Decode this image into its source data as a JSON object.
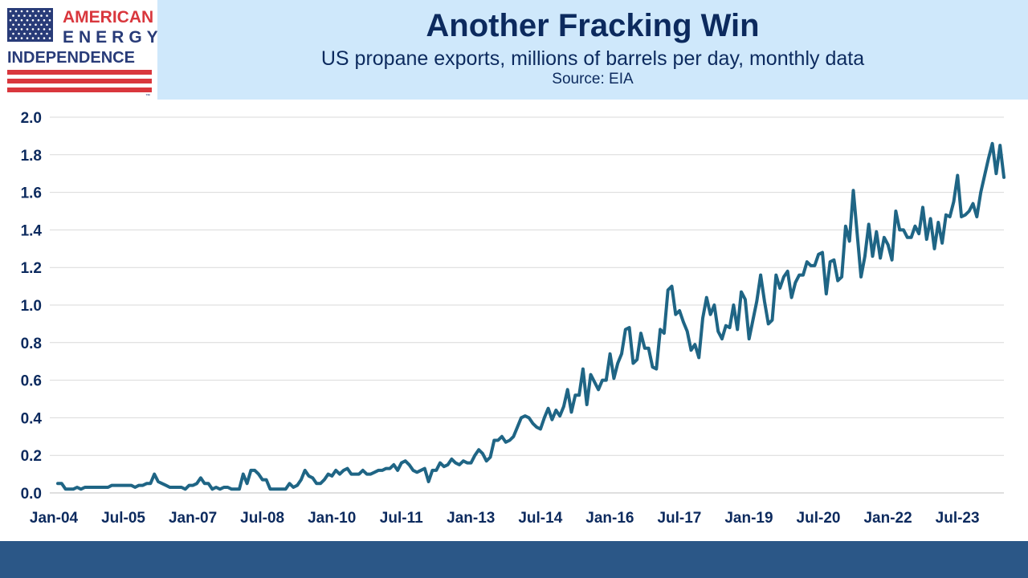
{
  "logo": {
    "line1": "AMERICAN",
    "line2": "ENERGY",
    "line3": "INDEPENDENCE",
    "tm": "™"
  },
  "header": {
    "title": "Another Fracking Win",
    "subtitle": "US propane exports, millions of barrels per day, monthly data",
    "source": "Source: EIA"
  },
  "colors": {
    "line": "#1f6585",
    "header_bg": "#cfe8fb",
    "footer_bg": "#2b5787",
    "text": "#0c2a5e",
    "flag_red": "#d9373d",
    "flag_blue": "#283b78"
  },
  "chart_data": {
    "type": "line",
    "ylim": [
      0,
      2.0
    ],
    "yticks": [
      "0.0",
      "0.2",
      "0.4",
      "0.6",
      "0.8",
      "1.0",
      "1.2",
      "1.4",
      "1.6",
      "1.8",
      "2.0"
    ],
    "xticks": [
      "Jan-04",
      "Jul-05",
      "Jan-07",
      "Jul-08",
      "Jan-10",
      "Jul-11",
      "Jan-13",
      "Jul-14",
      "Jan-16",
      "Jul-17",
      "Jan-19",
      "Jul-20",
      "Jan-22",
      "Jul-23"
    ],
    "grid": true,
    "start": "Jan-04",
    "series": [
      {
        "values": [
          0.05,
          0.05,
          0.02,
          0.02,
          0.02,
          0.03,
          0.02,
          0.03,
          0.03,
          0.03,
          0.03,
          0.03,
          0.03,
          0.03,
          0.04,
          0.04,
          0.04,
          0.04,
          0.04,
          0.04,
          0.03,
          0.04,
          0.04,
          0.05,
          0.05,
          0.1,
          0.06,
          0.05,
          0.04,
          0.03,
          0.03,
          0.03,
          0.03,
          0.02,
          0.04,
          0.04,
          0.05,
          0.08,
          0.05,
          0.05,
          0.02,
          0.03,
          0.02,
          0.03,
          0.03,
          0.02,
          0.02,
          0.02,
          0.1,
          0.05,
          0.12,
          0.12,
          0.1,
          0.07,
          0.07,
          0.02,
          0.02,
          0.02,
          0.02,
          0.02,
          0.05,
          0.03,
          0.04,
          0.07,
          0.12,
          0.09,
          0.08,
          0.05,
          0.05,
          0.07,
          0.1,
          0.09,
          0.12,
          0.1,
          0.12,
          0.13,
          0.1,
          0.1,
          0.1,
          0.12,
          0.1,
          0.1,
          0.11,
          0.12,
          0.12,
          0.13,
          0.13,
          0.15,
          0.12,
          0.16,
          0.17,
          0.15,
          0.12,
          0.11,
          0.12,
          0.13,
          0.06,
          0.12,
          0.12,
          0.16,
          0.14,
          0.15,
          0.18,
          0.16,
          0.15,
          0.17,
          0.16,
          0.16,
          0.2,
          0.23,
          0.21,
          0.17,
          0.19,
          0.28,
          0.28,
          0.3,
          0.27,
          0.28,
          0.3,
          0.35,
          0.4,
          0.41,
          0.4,
          0.37,
          0.35,
          0.34,
          0.4,
          0.45,
          0.39,
          0.44,
          0.41,
          0.46,
          0.55,
          0.43,
          0.52,
          0.52,
          0.66,
          0.47,
          0.63,
          0.59,
          0.55,
          0.6,
          0.6,
          0.74,
          0.61,
          0.69,
          0.74,
          0.87,
          0.88,
          0.69,
          0.71,
          0.85,
          0.77,
          0.77,
          0.67,
          0.66,
          0.87,
          0.85,
          1.08,
          1.1,
          0.95,
          0.97,
          0.91,
          0.86,
          0.76,
          0.79,
          0.72,
          0.93,
          1.04,
          0.95,
          1.0,
          0.86,
          0.82,
          0.89,
          0.88,
          1.0,
          0.87,
          1.07,
          1.03,
          0.82,
          0.92,
          1.02,
          1.16,
          1.02,
          0.9,
          0.92,
          1.16,
          1.09,
          1.15,
          1.18,
          1.04,
          1.12,
          1.16,
          1.16,
          1.23,
          1.21,
          1.21,
          1.27,
          1.28,
          1.06,
          1.23,
          1.24,
          1.13,
          1.15,
          1.42,
          1.34,
          1.61,
          1.38,
          1.15,
          1.26,
          1.43,
          1.26,
          1.39,
          1.25,
          1.36,
          1.32,
          1.24,
          1.5,
          1.4,
          1.4,
          1.36,
          1.36,
          1.42,
          1.38,
          1.52,
          1.35,
          1.46,
          1.3,
          1.44,
          1.33,
          1.48,
          1.47,
          1.55,
          1.69,
          1.47,
          1.48,
          1.5,
          1.54,
          1.47,
          1.6,
          1.69,
          1.78,
          1.86,
          1.7,
          1.85,
          1.68
        ]
      }
    ]
  }
}
